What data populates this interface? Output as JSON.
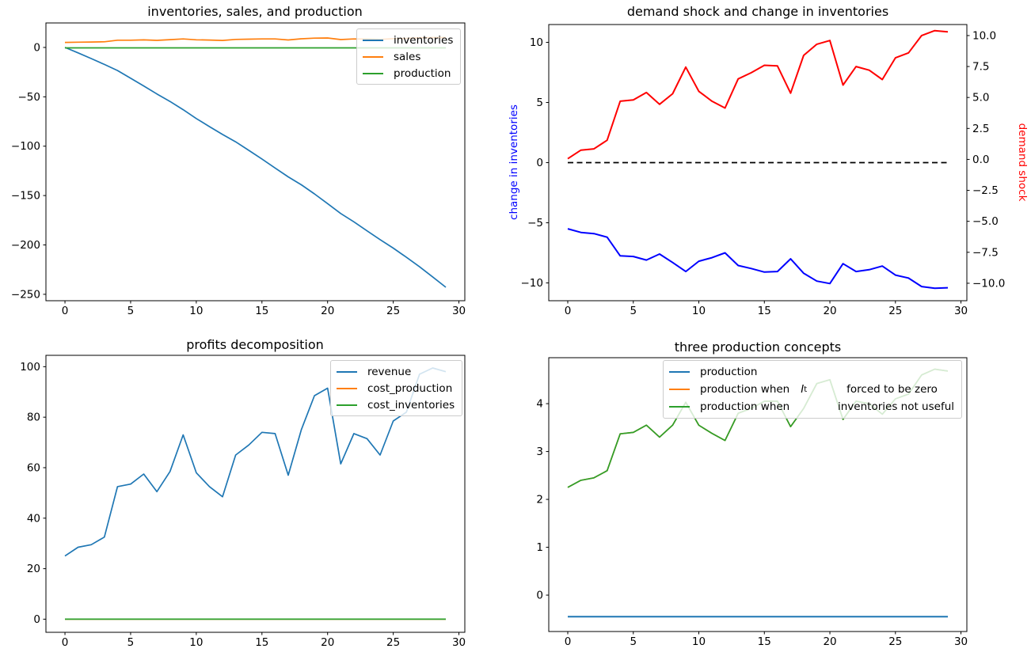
{
  "figure": {
    "background": "#ffffff"
  },
  "colors": {
    "mpl_blue": "#1f77b4",
    "mpl_orange": "#ff7f0e",
    "mpl_green": "#2ca02c",
    "pure_red": "#ff0000",
    "pure_blue": "#0000ff",
    "dashed_black": "#000000",
    "legend_border": "#cccccc"
  },
  "chart_data": [
    {
      "type": "line",
      "title": "inventories, sales, and production",
      "x": [
        0,
        1,
        2,
        3,
        4,
        5,
        6,
        7,
        8,
        9,
        10,
        11,
        12,
        13,
        14,
        15,
        16,
        17,
        18,
        19,
        20,
        21,
        22,
        23,
        24,
        25,
        26,
        27,
        28,
        29
      ],
      "xlim": [
        -1.45,
        30.45
      ],
      "ylim": [
        -256.5,
        24.8
      ],
      "xticks": [
        [
          0,
          "0"
        ],
        [
          5,
          "5"
        ],
        [
          10,
          "10"
        ],
        [
          15,
          "15"
        ],
        [
          20,
          "20"
        ],
        [
          25,
          "25"
        ],
        [
          30,
          "30"
        ]
      ],
      "yticks": [
        [
          0,
          "0"
        ],
        [
          -50,
          "−50"
        ],
        [
          -100,
          "−100"
        ],
        [
          -150,
          "−150"
        ],
        [
          -200,
          "−200"
        ],
        [
          -250,
          "−250"
        ]
      ],
      "legend": {
        "position": "upper right",
        "labels": [
          "inventories",
          "sales",
          "production"
        ]
      },
      "series": [
        {
          "name": "inventories",
          "color": "#1f77b4",
          "width": 1.7,
          "values": [
            0,
            -5.5,
            -11.3,
            -17.2,
            -23.4,
            -31.2,
            -39.0,
            -47.1,
            -54.7,
            -63.0,
            -72.0,
            -80.2,
            -88.1,
            -95.6,
            -104.2,
            -113.0,
            -122.1,
            -131.1,
            -139.1,
            -148.3,
            -158.2,
            -168.2,
            -176.6,
            -185.7,
            -194.6,
            -203.2,
            -212.5,
            -222.1,
            -232.4,
            -242.9
          ]
        },
        {
          "name": "sales",
          "color": "#ff7f0e",
          "width": 1.7,
          "values": [
            5.05,
            5.35,
            5.45,
            5.75,
            7.3,
            7.35,
            7.65,
            7.15,
            7.85,
            8.6,
            7.75,
            7.45,
            7.05,
            8.1,
            8.35,
            8.65,
            8.6,
            7.55,
            8.75,
            9.4,
            9.6,
            7.95,
            8.6,
            8.45,
            8.15,
            8.9,
            9.15,
            9.85,
            10.0,
            9.95
          ]
        },
        {
          "name": "production",
          "color": "#2ca02c",
          "width": 1.7,
          "values": [
            -0.45,
            -0.45,
            -0.45,
            -0.45,
            -0.45,
            -0.45,
            -0.45,
            -0.45,
            -0.45,
            -0.45,
            -0.45,
            -0.45,
            -0.45,
            -0.45,
            -0.45,
            -0.45,
            -0.45,
            -0.45,
            -0.45,
            -0.45,
            -0.45,
            -0.45,
            -0.45,
            -0.45,
            -0.45,
            -0.45,
            -0.45,
            -0.45,
            -0.45,
            -0.45
          ]
        }
      ]
    },
    {
      "type": "line",
      "title": "demand shock and change in inventories",
      "ylabel_left": "change in inventories",
      "ylabel_right": "demand shock",
      "x": [
        0,
        1,
        2,
        3,
        4,
        5,
        6,
        7,
        8,
        9,
        10,
        11,
        12,
        13,
        14,
        15,
        16,
        17,
        18,
        19,
        20,
        21,
        22,
        23,
        24,
        25,
        26,
        27,
        28,
        29
      ],
      "xlim": [
        -1.45,
        30.45
      ],
      "ylim": [
        -11.48,
        11.48
      ],
      "ylim_right": [
        -11.41,
        10.89
      ],
      "xticks": [
        [
          0,
          "0"
        ],
        [
          5,
          "5"
        ],
        [
          10,
          "10"
        ],
        [
          15,
          "15"
        ],
        [
          20,
          "20"
        ],
        [
          25,
          "25"
        ],
        [
          30,
          "30"
        ]
      ],
      "yticks": [
        [
          10,
          "10"
        ],
        [
          5,
          "5"
        ],
        [
          0,
          "0"
        ],
        [
          -5,
          "−5"
        ],
        [
          -10,
          "−10"
        ]
      ],
      "yticks_right": [
        [
          10,
          "10.0"
        ],
        [
          7.5,
          "7.5"
        ],
        [
          5,
          "5.0"
        ],
        [
          2.5,
          "2.5"
        ],
        [
          0,
          "0.0"
        ],
        [
          -2.5,
          "−2.5"
        ],
        [
          -5,
          "−5.0"
        ],
        [
          -7.5,
          "−7.5"
        ],
        [
          -10,
          "−10.0"
        ]
      ],
      "legend": {
        "position": "none",
        "labels": []
      },
      "series": [
        {
          "name": "change in inventories",
          "color": "#0000ff",
          "width": 2,
          "values": [
            -5.5,
            -5.8,
            -5.9,
            -6.2,
            -7.75,
            -7.8,
            -8.1,
            -7.6,
            -8.3,
            -9.05,
            -8.2,
            -7.9,
            -7.5,
            -8.55,
            -8.8,
            -9.1,
            -9.05,
            -8.0,
            -9.2,
            -9.85,
            -10.05,
            -8.4,
            -9.05,
            -8.9,
            -8.6,
            -9.35,
            -9.6,
            -10.3,
            -10.45,
            -10.4
          ]
        },
        {
          "name": "zero line",
          "color": "#000000",
          "width": 1.8,
          "dash": "7,4.5",
          "values": [
            0,
            0,
            0,
            0,
            0,
            0,
            0,
            0,
            0,
            0,
            0,
            0,
            0,
            0,
            0,
            0,
            0,
            0,
            0,
            0,
            0,
            0,
            0,
            0,
            0,
            0,
            0,
            0,
            0,
            0
          ]
        },
        {
          "name": "demand shock",
          "color": "#ff0000",
          "width": 2,
          "axis": "right",
          "values": [
            0.05,
            0.75,
            0.85,
            1.55,
            4.7,
            4.8,
            5.4,
            4.45,
            5.3,
            7.45,
            5.5,
            4.7,
            4.15,
            6.5,
            7.0,
            7.6,
            7.55,
            5.35,
            8.4,
            9.3,
            9.6,
            6.0,
            7.5,
            7.2,
            6.45,
            8.2,
            8.6,
            10.0,
            10.4,
            10.3
          ]
        }
      ]
    },
    {
      "type": "line",
      "title": "profits decomposition",
      "x": [
        0,
        1,
        2,
        3,
        4,
        5,
        6,
        7,
        8,
        9,
        10,
        11,
        12,
        13,
        14,
        15,
        16,
        17,
        18,
        19,
        20,
        21,
        22,
        23,
        24,
        25,
        26,
        27,
        28,
        29
      ],
      "xlim": [
        -1.45,
        30.45
      ],
      "ylim": [
        -5.2,
        104.5
      ],
      "xticks": [
        [
          0,
          "0"
        ],
        [
          5,
          "5"
        ],
        [
          10,
          "10"
        ],
        [
          15,
          "15"
        ],
        [
          20,
          "20"
        ],
        [
          25,
          "25"
        ],
        [
          30,
          "30"
        ]
      ],
      "yticks": [
        [
          100,
          "100"
        ],
        [
          80,
          "80"
        ],
        [
          60,
          "60"
        ],
        [
          40,
          "40"
        ],
        [
          20,
          "20"
        ],
        [
          0,
          "0"
        ]
      ],
      "legend": {
        "position": "upper right",
        "labels": [
          "revenue",
          "cost_production",
          "cost_inventories"
        ]
      },
      "series": [
        {
          "name": "revenue",
          "color": "#1f77b4",
          "width": 1.7,
          "values": [
            25,
            28.5,
            29.5,
            32.5,
            52.5,
            53.5,
            57.5,
            50.5,
            58.5,
            73,
            58,
            52.5,
            48.5,
            65,
            69,
            74,
            73.5,
            57,
            75,
            88.5,
            91.5,
            61.5,
            73.5,
            71.5,
            65,
            78.5,
            82,
            97,
            99.5,
            98
          ]
        },
        {
          "name": "cost_production",
          "color": "#ff7f0e",
          "width": 1.7,
          "values": [
            0,
            0,
            0,
            0,
            0,
            0,
            0,
            0,
            0,
            0,
            0,
            0,
            0,
            0,
            0,
            0,
            0,
            0,
            0,
            0,
            0,
            0,
            0,
            0,
            0,
            0,
            0,
            0,
            0,
            0
          ]
        },
        {
          "name": "cost_inventories",
          "color": "#2ca02c",
          "width": 1.7,
          "values": [
            0,
            0,
            0,
            0,
            0,
            0,
            0,
            0,
            0,
            0,
            0,
            0,
            0,
            0,
            0,
            0,
            0,
            0,
            0,
            0,
            0,
            0,
            0,
            0,
            0,
            0,
            0,
            0,
            0,
            0
          ]
        }
      ]
    },
    {
      "type": "line",
      "title": "three production concepts",
      "x": [
        0,
        1,
        2,
        3,
        4,
        5,
        6,
        7,
        8,
        9,
        10,
        11,
        12,
        13,
        14,
        15,
        16,
        17,
        18,
        19,
        20,
        21,
        22,
        23,
        24,
        25,
        26,
        27,
        28,
        29
      ],
      "xlim": [
        -1.45,
        30.45
      ],
      "ylim": [
        -0.76,
        4.96
      ],
      "xticks": [
        [
          0,
          "0"
        ],
        [
          5,
          "5"
        ],
        [
          10,
          "10"
        ],
        [
          15,
          "15"
        ],
        [
          20,
          "20"
        ],
        [
          25,
          "25"
        ],
        [
          30,
          "30"
        ]
      ],
      "yticks": [
        [
          4,
          "4"
        ],
        [
          3,
          "3"
        ],
        [
          2,
          "2"
        ],
        [
          1,
          "1"
        ],
        [
          0,
          "0"
        ]
      ],
      "legend": {
        "position": "upper center",
        "row1_label": "production",
        "row2_pre": "production when",
        "row2_math_var": "I",
        "row2_math_sub": "t",
        "row2_post": "forced to be zero",
        "row3_pre": "production when",
        "row3_post": "inventories not useful"
      },
      "series": [
        {
          "name": "production",
          "color": "#1f77b4",
          "width": 2,
          "values": [
            -0.45,
            -0.45,
            -0.45,
            -0.45,
            -0.45,
            -0.45,
            -0.45,
            -0.45,
            -0.45,
            -0.45,
            -0.45,
            -0.45,
            -0.45,
            -0.45,
            -0.45,
            -0.45,
            -0.45,
            -0.45,
            -0.45,
            -0.45,
            -0.45,
            -0.45,
            -0.45,
            -0.45,
            -0.45,
            -0.45,
            -0.45,
            -0.45,
            -0.45,
            -0.45
          ]
        },
        {
          "name": "production when I_t forced to be zero",
          "color": "#ff7f0e",
          "width": 1.7,
          "values": [
            2.25,
            2.4,
            2.45,
            2.6,
            3.37,
            3.4,
            3.55,
            3.3,
            3.55,
            4.03,
            3.55,
            3.38,
            3.23,
            3.8,
            3.9,
            4.05,
            4.05,
            3.52,
            3.9,
            4.42,
            4.5,
            3.67,
            4.05,
            4.0,
            3.78,
            4.1,
            4.2,
            4.6,
            4.72,
            4.68
          ]
        },
        {
          "name": "production when inventories not useful",
          "color": "#2ca02c",
          "width": 1.7,
          "values": [
            2.25,
            2.4,
            2.45,
            2.6,
            3.37,
            3.4,
            3.55,
            3.3,
            3.55,
            4.03,
            3.55,
            3.38,
            3.23,
            3.8,
            3.9,
            4.05,
            4.05,
            3.52,
            3.9,
            4.42,
            4.5,
            3.67,
            4.05,
            4.0,
            3.78,
            4.1,
            4.2,
            4.6,
            4.72,
            4.68
          ]
        }
      ]
    }
  ]
}
